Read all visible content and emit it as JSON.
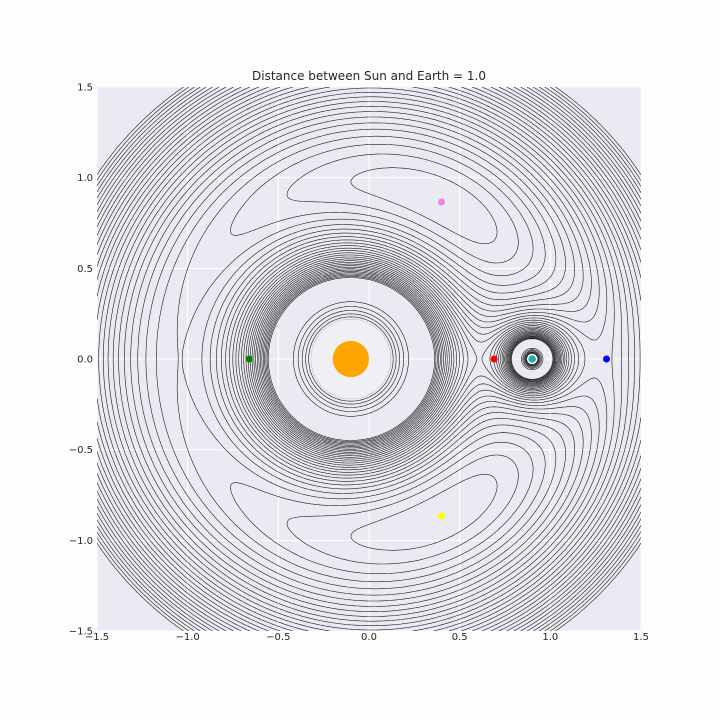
{
  "chart_data": {
    "type": "contour",
    "title": "Distance between Sun and Earth = 1.0",
    "xlabel": "",
    "ylabel": "",
    "xlim": [
      -1.5,
      1.5
    ],
    "ylim": [
      -1.5,
      1.5
    ],
    "grid": true,
    "background_color": "#eaeaf2",
    "grid_color": "#ffffff",
    "contour_color": "#1a1a1a",
    "x_ticks": [
      -1.5,
      -1.0,
      -0.5,
      0.0,
      0.5,
      1.0,
      1.5
    ],
    "y_ticks": [
      -1.5,
      -1.0,
      -0.5,
      0.0,
      0.5,
      1.0,
      1.5
    ],
    "x_tick_labels": [
      "−1.5",
      "−1.0",
      "−0.5",
      "0.0",
      "0.5",
      "1.0",
      "1.5"
    ],
    "y_tick_labels": [
      "−1.5",
      "−1.0",
      "−0.5",
      "0.0",
      "0.5",
      "1.0",
      "1.5"
    ],
    "potential": {
      "mass_ratio": 0.1,
      "sun_x": -0.1,
      "earth_x": 0.9
    },
    "bodies": [
      {
        "name": "sun",
        "x": -0.1,
        "y": 0.0,
        "color": "#ffa500",
        "radius": 0.1,
        "halo_color": "#f0f0f4",
        "halo_radius": 0.22
      },
      {
        "name": "earth",
        "x": 0.9,
        "y": 0.0,
        "color": "#20b2aa",
        "radius": 0.025,
        "edge_color": "#ffffff"
      }
    ],
    "points": [
      {
        "name": "L1",
        "x": 0.69,
        "y": 0.0,
        "color": "#ff0000"
      },
      {
        "name": "L2",
        "x": 1.31,
        "y": 0.0,
        "color": "#0000ff"
      },
      {
        "name": "L3",
        "x": -0.66,
        "y": 0.0,
        "color": "#008000"
      },
      {
        "name": "L4",
        "x": 0.4,
        "y": 0.866,
        "color": "#ee82ee"
      },
      {
        "name": "L5",
        "x": 0.4,
        "y": -0.866,
        "color": "#ffff00"
      }
    ]
  }
}
